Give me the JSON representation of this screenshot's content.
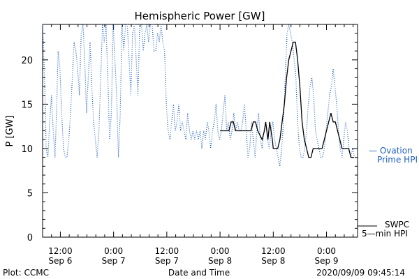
{
  "chart_data": {
    "type": "line",
    "title": "Hemispheric Power [GW]",
    "ylabel": "P [GW]",
    "xlabel": "Date and Time",
    "ylim": [
      0,
      24
    ],
    "xlim": [
      -2,
      69
    ],
    "x_units": "hours since 2020-09-06 10:00",
    "y_ticks": [
      0,
      5,
      10,
      15,
      20
    ],
    "x_ticks": [
      {
        "x": 2,
        "time": "12:00",
        "date": "Sep 6"
      },
      {
        "x": 14,
        "time": "0:00",
        "date": "Sep 7"
      },
      {
        "x": 26,
        "time": "12:00",
        "date": "Sep 7"
      },
      {
        "x": 38,
        "time": "0:00",
        "date": "Sep 8"
      },
      {
        "x": 50,
        "time": "12:00",
        "date": "Sep 8"
      },
      {
        "x": 62,
        "time": "0:00",
        "date": "Sep 9"
      }
    ],
    "grid": false,
    "series": [
      {
        "name": "Ovation Prime HPI",
        "label_line1": "— Ovation",
        "label_line2": "Prime HPI",
        "style": "dotted",
        "color": "#1f5fbf",
        "points": [
          [
            -2,
            24
          ],
          [
            -1.5,
            17
          ],
          [
            -1.2,
            10
          ],
          [
            -0.8,
            9
          ],
          [
            -0.4,
            13
          ],
          [
            0,
            16
          ],
          [
            0.4,
            12
          ],
          [
            0.8,
            9
          ],
          [
            1.2,
            15
          ],
          [
            1.5,
            21
          ],
          [
            1.9,
            19
          ],
          [
            2.3,
            14
          ],
          [
            2.7,
            10
          ],
          [
            3.1,
            9
          ],
          [
            3.5,
            9
          ],
          [
            3.9,
            11
          ],
          [
            4.3,
            14
          ],
          [
            4.7,
            18
          ],
          [
            5.1,
            22
          ],
          [
            5.5,
            21
          ],
          [
            5.9,
            19
          ],
          [
            6.3,
            16
          ],
          [
            6.7,
            23
          ],
          [
            7.1,
            24
          ],
          [
            7.5,
            20
          ],
          [
            7.9,
            14
          ],
          [
            8.3,
            18
          ],
          [
            8.7,
            22
          ],
          [
            9.1,
            17
          ],
          [
            9.5,
            13
          ],
          [
            9.9,
            11
          ],
          [
            10.3,
            9
          ],
          [
            10.7,
            12
          ],
          [
            11.1,
            18
          ],
          [
            11.5,
            24
          ],
          [
            11.9,
            22
          ],
          [
            12.3,
            24
          ],
          [
            12.7,
            18
          ],
          [
            13.1,
            11
          ],
          [
            13.5,
            14
          ],
          [
            13.9,
            24
          ],
          [
            14.3,
            20
          ],
          [
            14.7,
            16
          ],
          [
            15.1,
            9
          ],
          [
            15.5,
            14
          ],
          [
            15.9,
            24
          ],
          [
            16.3,
            21
          ],
          [
            16.7,
            24
          ],
          [
            17.1,
            24
          ],
          [
            17.5,
            20
          ],
          [
            17.9,
            16
          ],
          [
            18.3,
            23
          ],
          [
            18.7,
            24
          ],
          [
            19.1,
            20
          ],
          [
            19.5,
            16
          ],
          [
            19.9,
            24
          ],
          [
            20.3,
            24
          ],
          [
            20.7,
            21
          ],
          [
            21.1,
            23
          ],
          [
            21.5,
            24
          ],
          [
            21.9,
            22
          ],
          [
            22.3,
            24
          ],
          [
            22.7,
            24
          ],
          [
            23.1,
            21
          ],
          [
            23.5,
            21
          ],
          [
            23.9,
            23
          ],
          [
            24.3,
            22
          ],
          [
            24.7,
            24
          ],
          [
            25.1,
            22
          ],
          [
            25.5,
            21
          ],
          [
            25.9,
            15
          ],
          [
            26.3,
            12
          ],
          [
            26.7,
            11
          ],
          [
            27.1,
            13
          ],
          [
            27.5,
            15
          ],
          [
            27.9,
            12
          ],
          [
            28.3,
            13
          ],
          [
            28.7,
            15
          ],
          [
            29.1,
            12
          ],
          [
            29.5,
            13
          ],
          [
            29.9,
            12
          ],
          [
            30.3,
            11
          ],
          [
            30.7,
            14
          ],
          [
            31.1,
            12
          ],
          [
            31.5,
            11
          ],
          [
            31.9,
            12
          ],
          [
            32.3,
            11
          ],
          [
            32.7,
            12
          ],
          [
            33.1,
            11
          ],
          [
            33.5,
            12
          ],
          [
            33.9,
            10
          ],
          [
            34.3,
            12
          ],
          [
            34.7,
            11
          ],
          [
            35.1,
            13
          ],
          [
            35.5,
            12
          ],
          [
            35.9,
            10
          ],
          [
            36.3,
            12
          ],
          [
            36.7,
            13
          ],
          [
            37.1,
            15
          ],
          [
            37.5,
            12
          ],
          [
            37.9,
            11
          ],
          [
            38.3,
            12
          ],
          [
            38.7,
            14
          ],
          [
            39.1,
            16
          ],
          [
            39.5,
            12
          ],
          [
            39.9,
            13
          ],
          [
            40.3,
            11
          ],
          [
            40.7,
            12
          ],
          [
            41.1,
            14
          ],
          [
            41.5,
            12
          ],
          [
            41.9,
            13
          ],
          [
            42.3,
            12
          ],
          [
            42.7,
            12
          ],
          [
            43.1,
            13
          ],
          [
            43.5,
            15
          ],
          [
            43.9,
            12
          ],
          [
            44.3,
            9
          ],
          [
            44.7,
            10
          ],
          [
            45.1,
            13
          ],
          [
            45.5,
            11
          ],
          [
            45.9,
            9
          ],
          [
            46.3,
            12
          ],
          [
            46.7,
            14
          ],
          [
            47.1,
            11
          ],
          [
            47.5,
            10
          ],
          [
            47.9,
            12
          ],
          [
            48.3,
            13
          ],
          [
            48.7,
            11
          ],
          [
            49.1,
            10
          ],
          [
            49.5,
            12
          ],
          [
            49.9,
            13
          ],
          [
            50.3,
            11
          ],
          [
            50.7,
            10
          ],
          [
            51.1,
            9
          ],
          [
            51.5,
            8
          ],
          [
            51.9,
            10
          ],
          [
            52.3,
            13
          ],
          [
            52.7,
            18
          ],
          [
            53.1,
            23
          ],
          [
            53.5,
            24
          ],
          [
            53.9,
            23
          ],
          [
            54.3,
            22
          ],
          [
            54.7,
            20
          ],
          [
            55.1,
            18
          ],
          [
            55.5,
            13
          ],
          [
            55.9,
            10
          ],
          [
            56.3,
            9
          ],
          [
            56.7,
            9
          ],
          [
            57.1,
            10
          ],
          [
            57.5,
            12
          ],
          [
            57.9,
            15
          ],
          [
            58.3,
            17
          ],
          [
            58.7,
            18
          ],
          [
            59.1,
            16
          ],
          [
            59.5,
            12
          ],
          [
            59.9,
            11
          ],
          [
            60.3,
            10
          ],
          [
            60.7,
            9
          ],
          [
            61.1,
            9
          ],
          [
            61.5,
            10
          ],
          [
            61.9,
            12
          ],
          [
            62.3,
            14
          ],
          [
            62.7,
            16
          ],
          [
            63.1,
            17
          ],
          [
            63.5,
            19
          ],
          [
            63.9,
            17
          ],
          [
            64.3,
            15
          ],
          [
            64.7,
            12
          ],
          [
            65.1,
            10
          ],
          [
            65.5,
            9
          ],
          [
            65.9,
            11
          ],
          [
            66.3,
            13
          ],
          [
            66.7,
            12
          ],
          [
            67.1,
            10
          ],
          [
            67.5,
            9
          ],
          [
            67.9,
            10
          ],
          [
            68.3,
            9
          ]
        ]
      },
      {
        "name": "SWPC 5-min HPI",
        "label_line1": "SWPC",
        "label_line2": "5—min HPI",
        "style": "solid",
        "color": "#000000",
        "points": [
          [
            38,
            12
          ],
          [
            40,
            12
          ],
          [
            40.5,
            13
          ],
          [
            41,
            13
          ],
          [
            41.5,
            12
          ],
          [
            45,
            12
          ],
          [
            45.5,
            13
          ],
          [
            46,
            13
          ],
          [
            46.5,
            12
          ],
          [
            47.5,
            11
          ],
          [
            48,
            12
          ],
          [
            48.3,
            13
          ],
          [
            48.8,
            11
          ],
          [
            49.2,
            13
          ],
          [
            49.8,
            11
          ],
          [
            50,
            10
          ],
          [
            51,
            10
          ],
          [
            51.5,
            11
          ],
          [
            52,
            13
          ],
          [
            52.5,
            15
          ],
          [
            53,
            18
          ],
          [
            53.5,
            20
          ],
          [
            54,
            21
          ],
          [
            54.5,
            22
          ],
          [
            55,
            22
          ],
          [
            55.5,
            20
          ],
          [
            56,
            17
          ],
          [
            56.5,
            13
          ],
          [
            57,
            11
          ],
          [
            57.5,
            10
          ],
          [
            58,
            9
          ],
          [
            58.5,
            9
          ],
          [
            59,
            10
          ],
          [
            61,
            10
          ],
          [
            61.5,
            11
          ],
          [
            62,
            12
          ],
          [
            62.5,
            13
          ],
          [
            63,
            14
          ],
          [
            63.5,
            13
          ],
          [
            64,
            13
          ],
          [
            64.5,
            12
          ],
          [
            65,
            11
          ],
          [
            65.5,
            10
          ],
          [
            67,
            10
          ],
          [
            67.5,
            9
          ],
          [
            68.2,
            9
          ]
        ]
      }
    ],
    "footer_left": "Plot: CCMC",
    "footer_right": "2020/09/09 09:45:14"
  }
}
